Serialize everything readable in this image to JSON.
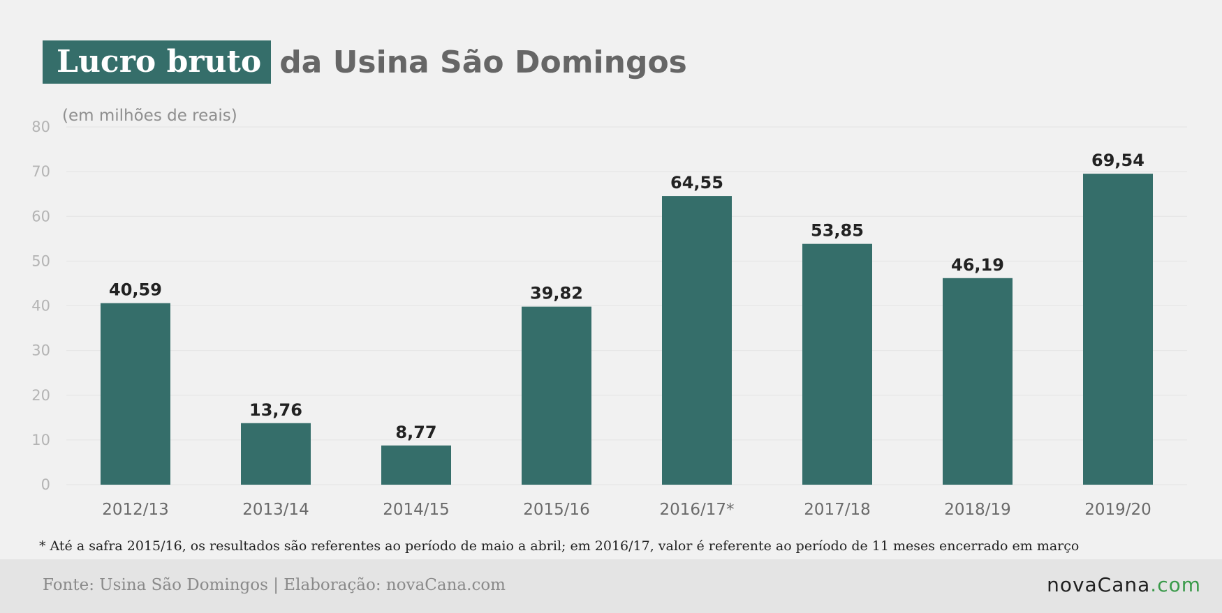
{
  "title": {
    "highlight": "Lucro bruto",
    "rest": "da Usina São Domingos"
  },
  "chart_data": {
    "type": "bar",
    "unit_label": "(em milhões de reais)",
    "categories": [
      "2012/13",
      "2013/14",
      "2014/15",
      "2015/16",
      "2016/17*",
      "2017/18",
      "2018/19",
      "2019/20"
    ],
    "values": [
      40.59,
      13.76,
      8.77,
      39.82,
      64.55,
      53.85,
      46.19,
      69.54
    ],
    "value_labels": [
      "40,59",
      "13,76",
      "8,77",
      "39,82",
      "64,55",
      "53,85",
      "46,19",
      "69,54"
    ],
    "yticks": [
      0,
      10,
      20,
      30,
      40,
      50,
      60,
      70,
      80
    ],
    "ylim": [
      0,
      80
    ],
    "grid": true,
    "bar_color": "#356e6a"
  },
  "footnote": "* Até a safra 2015/16, os resultados são referentes ao período de maio a abril; em 2016/17, valor é referente ao período de 11 meses encerrado em março",
  "footer": {
    "source": "Fonte: Usina São Domingos | Elaboração: novaCana.com",
    "logo_main": "novaCana",
    "logo_suffix": ".com"
  }
}
